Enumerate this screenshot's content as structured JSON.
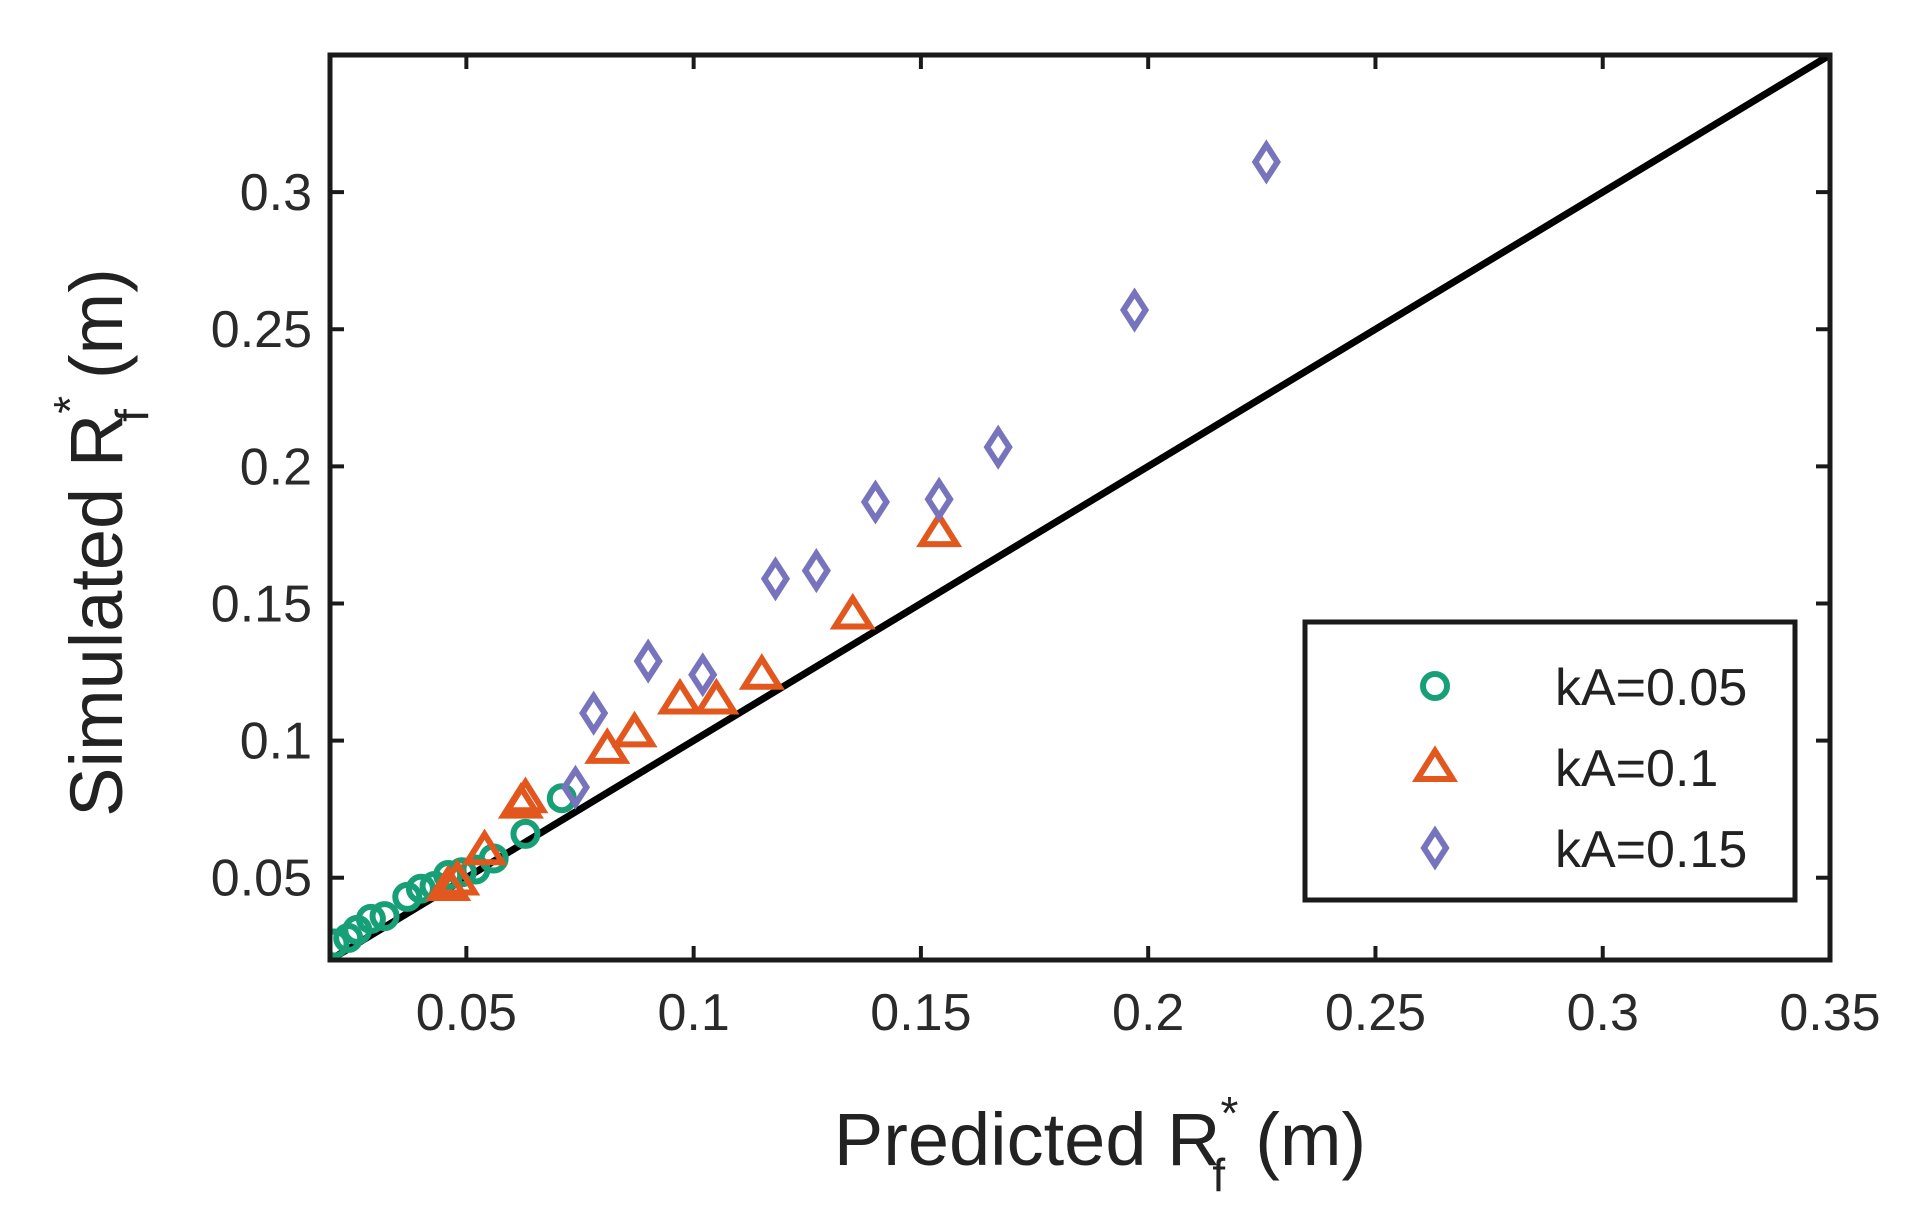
{
  "chart_data": {
    "type": "scatter",
    "title": "",
    "xlabel": {
      "main": "Predicted R",
      "sub": "f",
      "sup": "*",
      "unit": "(m)"
    },
    "ylabel": {
      "main": "Simulated R",
      "sub": "f",
      "sup": "*",
      "unit": "(m)"
    },
    "xlim": [
      0.02,
      0.35
    ],
    "ylim": [
      0.02,
      0.35
    ],
    "xticks": [
      0.05,
      0.1,
      0.15,
      0.2,
      0.25,
      0.3,
      0.35
    ],
    "yticks": [
      0.05,
      0.1,
      0.15,
      0.2,
      0.25,
      0.3
    ],
    "xtick_labels": [
      "0.05",
      "0.1",
      "0.15",
      "0.2",
      "0.25",
      "0.3",
      "0.35"
    ],
    "ytick_labels": [
      "0.05",
      "0.1",
      "0.15",
      "0.2",
      "0.25",
      "0.3"
    ],
    "grid": false,
    "legend_position": "bottom-right",
    "reference_line": {
      "name": "y = x",
      "points": [
        [
          0.02,
          0.02
        ],
        [
          0.35,
          0.35
        ]
      ],
      "color": "#000000"
    },
    "series": [
      {
        "name": "kA=0.05",
        "marker": "circle",
        "color": "#17a077",
        "points": [
          [
            0.021,
            0.026
          ],
          [
            0.024,
            0.028
          ],
          [
            0.026,
            0.031
          ],
          [
            0.029,
            0.035
          ],
          [
            0.032,
            0.036
          ],
          [
            0.037,
            0.043
          ],
          [
            0.04,
            0.046
          ],
          [
            0.043,
            0.047
          ],
          [
            0.046,
            0.051
          ],
          [
            0.049,
            0.052
          ],
          [
            0.052,
            0.053
          ],
          [
            0.056,
            0.057
          ],
          [
            0.063,
            0.066
          ],
          [
            0.071,
            0.079
          ]
        ]
      },
      {
        "name": "kA=0.1",
        "marker": "triangle",
        "color": "#e2571d",
        "points": [
          [
            0.046,
            0.047
          ],
          [
            0.048,
            0.049
          ],
          [
            0.054,
            0.06
          ],
          [
            0.062,
            0.077
          ],
          [
            0.063,
            0.079
          ],
          [
            0.081,
            0.097
          ],
          [
            0.087,
            0.103
          ],
          [
            0.097,
            0.115
          ],
          [
            0.105,
            0.115
          ],
          [
            0.115,
            0.124
          ],
          [
            0.135,
            0.146
          ],
          [
            0.154,
            0.176
          ]
        ]
      },
      {
        "name": "kA=0.15",
        "marker": "diamond",
        "color": "#7774bd",
        "points": [
          [
            0.074,
            0.083
          ],
          [
            0.078,
            0.11
          ],
          [
            0.09,
            0.129
          ],
          [
            0.102,
            0.124
          ],
          [
            0.118,
            0.159
          ],
          [
            0.127,
            0.162
          ],
          [
            0.14,
            0.187
          ],
          [
            0.154,
            0.188
          ],
          [
            0.167,
            0.207
          ],
          [
            0.197,
            0.257
          ],
          [
            0.226,
            0.311
          ]
        ]
      }
    ]
  }
}
